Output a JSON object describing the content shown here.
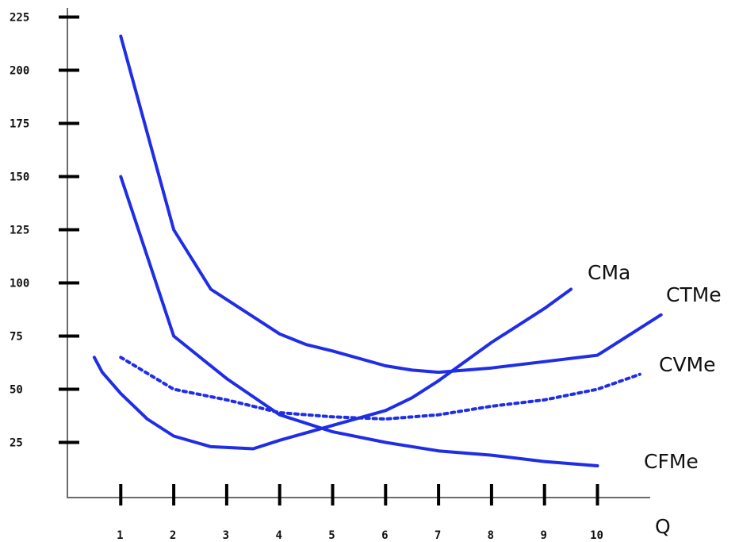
{
  "chart_data": {
    "type": "line",
    "title": "",
    "xlabel": "Q",
    "ylabel": "",
    "x_ticks": [
      "1",
      "2",
      "3",
      "4",
      "5",
      "6",
      "7",
      "8",
      "9",
      "10"
    ],
    "y_ticks": [
      "25",
      "50",
      "75",
      "100",
      "125",
      "150",
      "175",
      "200",
      "225"
    ],
    "xlim": [
      0,
      11
    ],
    "ylim": [
      0,
      225
    ],
    "grid": false,
    "legend": "none",
    "series_color": "#1f2ee6",
    "series": [
      {
        "name": "CMa",
        "style": "solid",
        "points": [
          [
            0.5,
            65
          ],
          [
            0.65,
            58
          ],
          [
            1,
            48
          ],
          [
            1.5,
            36
          ],
          [
            2,
            28
          ],
          [
            2.7,
            23
          ],
          [
            3.5,
            22
          ],
          [
            4,
            26
          ],
          [
            5,
            33
          ],
          [
            6,
            40
          ],
          [
            6.5,
            46
          ],
          [
            7,
            54
          ],
          [
            8,
            72
          ],
          [
            9,
            88
          ],
          [
            9.5,
            97
          ]
        ]
      },
      {
        "name": "CTMe",
        "style": "solid",
        "points": [
          [
            1,
            216
          ],
          [
            2,
            125
          ],
          [
            2.7,
            97
          ],
          [
            4,
            76
          ],
          [
            4.5,
            71
          ],
          [
            5,
            68
          ],
          [
            6,
            61
          ],
          [
            6.5,
            59
          ],
          [
            7,
            58
          ],
          [
            8,
            60
          ],
          [
            9,
            63
          ],
          [
            10,
            66
          ],
          [
            11.2,
            85
          ]
        ]
      },
      {
        "name": "CVMe",
        "style": "dotted",
        "points": [
          [
            1,
            65
          ],
          [
            2,
            50
          ],
          [
            3,
            45
          ],
          [
            4,
            39
          ],
          [
            5,
            37
          ],
          [
            6,
            36
          ],
          [
            7,
            38
          ],
          [
            8,
            42
          ],
          [
            9,
            45
          ],
          [
            10,
            50
          ],
          [
            10.8,
            57
          ]
        ]
      },
      {
        "name": "CFMe",
        "style": "solid",
        "points": [
          [
            1,
            150
          ],
          [
            2,
            75
          ],
          [
            3,
            55
          ],
          [
            4,
            38
          ],
          [
            5,
            30
          ],
          [
            6,
            25
          ],
          [
            7,
            21
          ],
          [
            8,
            19
          ],
          [
            9,
            16
          ],
          [
            10,
            14
          ]
        ]
      }
    ]
  }
}
